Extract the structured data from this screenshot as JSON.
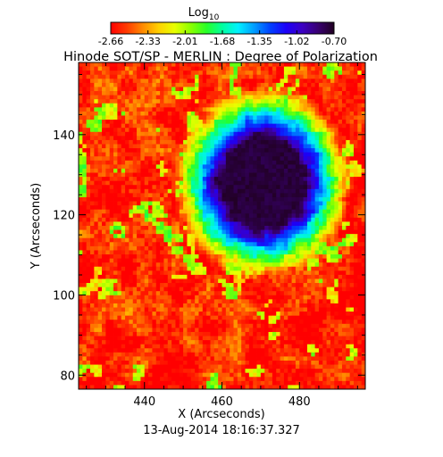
{
  "chart_data": {
    "type": "heatmap",
    "title": "Hinode SOT/SP - MERLIN : Degree of Polarization",
    "xlabel": "X (Arcseconds)",
    "ylabel": "Y (Arcseconds)",
    "timestamp": "13-Aug-2014 18:16:37.327",
    "xlim": [
      423,
      497
    ],
    "ylim": [
      76.5,
      158
    ],
    "xticks": [
      440,
      460,
      480
    ],
    "yticks": [
      80,
      100,
      120,
      140
    ],
    "colorbar": {
      "title": "Log",
      "title_subscript": "10",
      "range": [
        -2.7,
        -0.7
      ],
      "ticks": [
        "-2.66",
        "-2.33",
        "-2.01",
        "-1.68",
        "-1.35",
        "-1.02",
        "-0.70"
      ],
      "colormap": [
        "#ff0000",
        "#ff3a00",
        "#ff8a00",
        "#ffd000",
        "#e8ff00",
        "#8cff00",
        "#28ff28",
        "#00ffa0",
        "#00f0ff",
        "#009cff",
        "#0040ff",
        "#1c00f8",
        "#3c00c4",
        "#380070",
        "#200020"
      ]
    },
    "features": {
      "background_level": -2.6,
      "spot": {
        "center_x": 470.5,
        "center_y": 128,
        "umbra_radius_arcsec": 11,
        "penumbra_radius_arcsec": 19,
        "core_level": -0.75
      }
    }
  }
}
